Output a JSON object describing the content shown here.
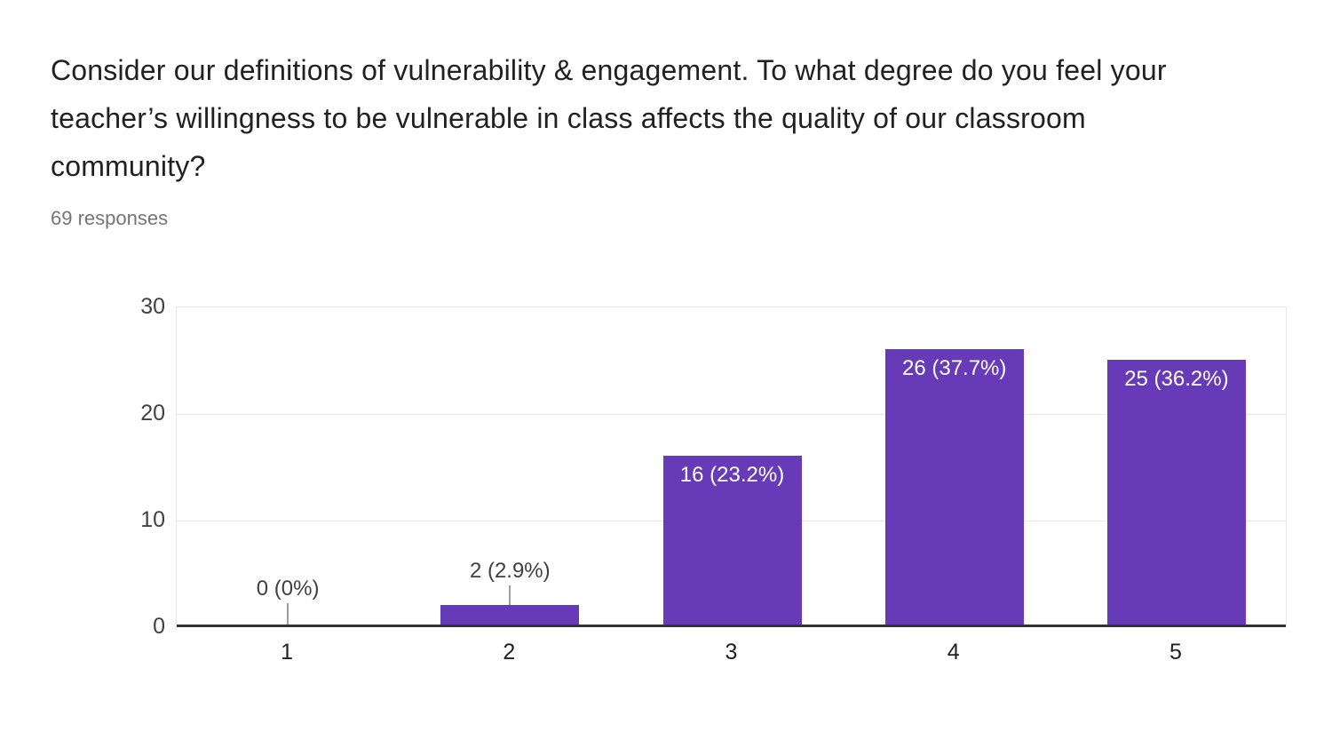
{
  "header": {
    "title": "Consider our definitions of vulnerability & engagement. To what degree do you feel your teacher’s willingness to be vulnerable in class affects the quality of our classroom community?",
    "responses": "69 responses"
  },
  "colors": {
    "bar": "#673ab7",
    "annotation_inside": "#ffffff",
    "annotation_outside": "#404040",
    "gridline": "#e6e6e6",
    "axis_line": "#333333",
    "title_text": "#212121",
    "responses_text": "#757575"
  },
  "chart_data": {
    "type": "bar",
    "categories": [
      "1",
      "2",
      "3",
      "4",
      "5"
    ],
    "values": [
      0,
      2,
      16,
      26,
      25
    ],
    "bar_labels": [
      "0 (0%)",
      "2 (2.9%)",
      "16 (23.2%)",
      "26 (37.7%)",
      "25 (36.2%)"
    ],
    "title": "",
    "xlabel": "",
    "ylabel": "",
    "ylim": [
      0,
      30
    ],
    "yticks": [
      0,
      10,
      20,
      30
    ],
    "grid": true,
    "legend": "none"
  }
}
